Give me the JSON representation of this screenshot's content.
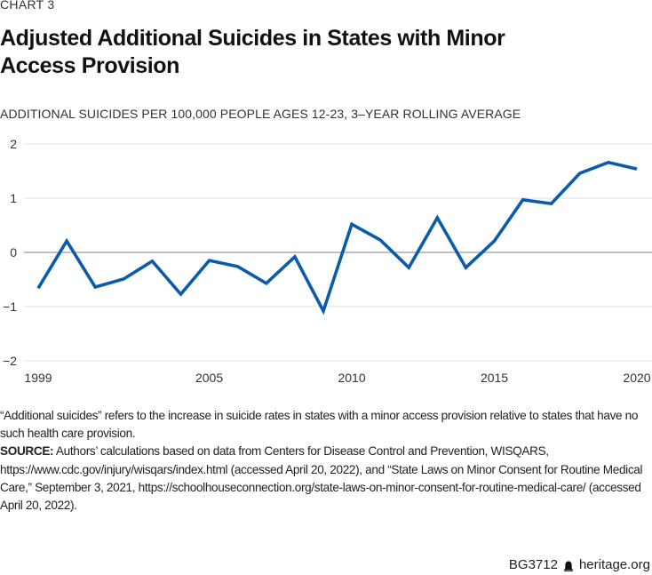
{
  "eyebrow": "CHART 3",
  "title": "Adjusted Additional Suicides in States with Minor Access Provision",
  "subtitle": "ADDITIONAL SUICIDES PER 100,000 PEOPLE AGES 12-23, 3–YEAR ROLLING AVERAGE",
  "colors": {
    "line": "#0a5cab",
    "zero_line": "#9a9a9a",
    "grid": "#e6e6e6"
  },
  "chart_data": {
    "type": "line",
    "title": "Adjusted Additional Suicides in States with Minor Access Provision",
    "ylabel": "Additional suicides per 100,000 people ages 12-23, 3-year rolling average",
    "xlabel": "",
    "x": [
      1999,
      2000,
      2001,
      2002,
      2003,
      2004,
      2005,
      2006,
      2007,
      2008,
      2009,
      2010,
      2011,
      2012,
      2013,
      2014,
      2015,
      2016,
      2017,
      2018,
      2019,
      2020
    ],
    "series": [
      {
        "name": "Adjusted additional suicides",
        "values": [
          -0.66,
          0.21,
          -0.64,
          -0.49,
          -0.16,
          -0.77,
          -0.15,
          -0.26,
          -0.57,
          -0.08,
          -1.08,
          0.52,
          0.23,
          -0.28,
          0.64,
          -0.28,
          0.21,
          0.97,
          0.9,
          1.46,
          1.66,
          1.54
        ]
      }
    ],
    "ylim": [
      -2,
      2
    ],
    "xlim": [
      1999,
      2020
    ],
    "yticks": [
      2,
      1,
      0,
      -1,
      -2
    ],
    "ytick_labels": [
      "2",
      "1",
      "0",
      "−1",
      "−2"
    ],
    "xticks": [
      1999,
      2005,
      2010,
      2015,
      2020
    ],
    "xtick_labels": [
      "1999",
      "2005",
      "2010",
      "2015",
      "2020"
    ],
    "grid": true,
    "legend": "none"
  },
  "note": "“Additional suicides” refers to the increase in suicide rates in states with a minor access provision relative to states that have no such health care provision.",
  "source": {
    "label": "SOURCE:",
    "text": " Authors’ calculations based on data from Centers for Disease Control and Prevention, WISQARS, https://www.cdc.gov/injury/wisqars/index.html (accessed April 20, 2022), and “State Laws on Minor Consent for Routine Medical Care,” September 3, 2021, https://schoolhouseconnection.org/state-laws-on-minor-consent-for-routine-medical-care/ (accessed April 20, 2022)."
  },
  "footer": {
    "code": "BG3712",
    "icon": "liberty-bell-icon",
    "site": "heritage.org"
  }
}
